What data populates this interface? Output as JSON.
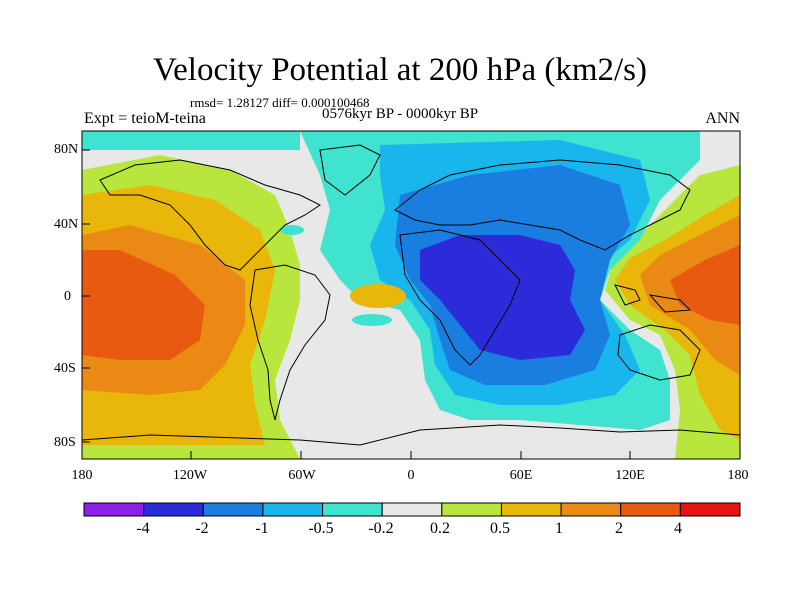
{
  "title": "Velocity Potential at 200 hPa (km2/s)",
  "stats_line": "rmsd= 1.28127 diff= 0.000100468",
  "period_line": "0576kyr BP - 0000kyr BP",
  "experiment": "Expt = teioM-teina",
  "season": "ANN",
  "lat_labels": [
    "80N",
    "40N",
    "0",
    "40S",
    "80S"
  ],
  "lon_labels": [
    "180",
    "120W",
    "60W",
    "0",
    "60E",
    "120E",
    "180"
  ],
  "colorbar": {
    "colors": [
      "#8c1fe8",
      "#2b2bd9",
      "#1a7ee0",
      "#19b6ee",
      "#3fe3cf",
      "#e8e8e8",
      "#b8e63c",
      "#e9b60a",
      "#ea8a14",
      "#e85a10",
      "#e81414"
    ],
    "labels": [
      "-4",
      "-2",
      "-1",
      "-0.5",
      "-0.2",
      "0.2",
      "0.5",
      "1",
      "2",
      "4"
    ]
  },
  "fill_colors": {
    "ocean": "#e8e8e8",
    "land_outline": "#000000"
  }
}
